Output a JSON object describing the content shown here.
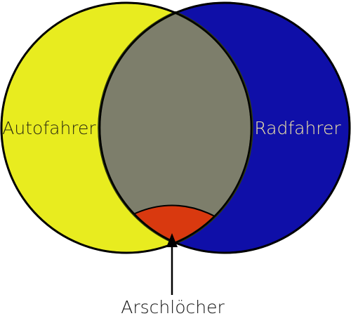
{
  "diagram": {
    "sets": [
      {
        "label": "Autofahrer",
        "color": "#e8ec1f",
        "label_color": "#2b2b10"
      },
      {
        "label": "Radfahrer",
        "color": "#0f0fa8",
        "label_color": "#f2e6a6"
      }
    ],
    "intersection": {
      "color": "#7d7e6b"
    },
    "subset": {
      "label": "Arschlöcher",
      "color": "#d9390f",
      "label_color": "#111111"
    },
    "arrow_color": "#000000"
  }
}
